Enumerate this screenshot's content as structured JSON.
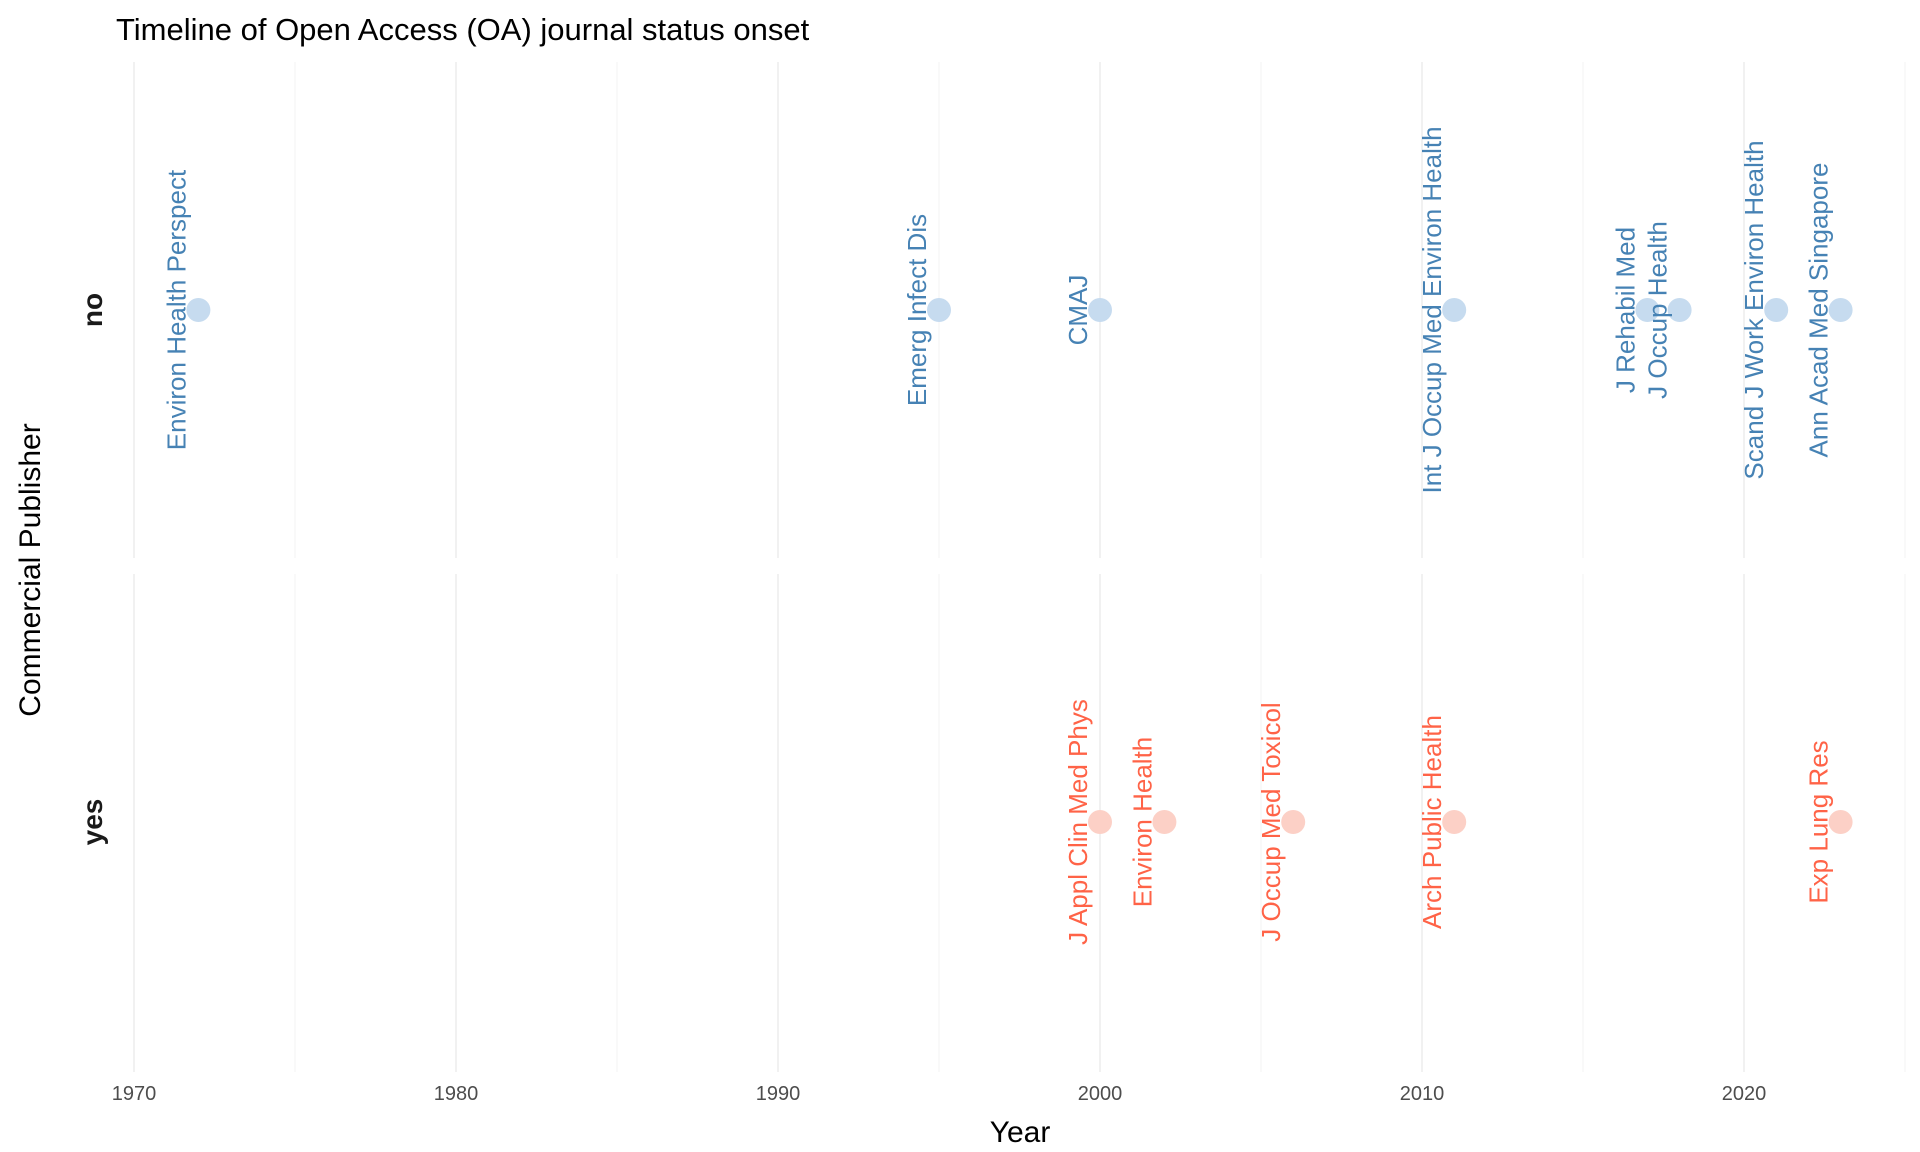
{
  "chart_data": {
    "type": "scatter",
    "title": "Timeline of Open Access (OA) journal status onset",
    "xlabel": "Year",
    "ylabel": "Commercial Publisher",
    "xlim": [
      1970,
      2025
    ],
    "x_ticks": [
      1970,
      1980,
      1990,
      2000,
      2010,
      2020
    ],
    "facets": [
      {
        "name": "no",
        "color": "#4682b4",
        "point_color": "#c6dbef",
        "points": [
          {
            "x": 1972,
            "label": "Environ Health Perspect"
          },
          {
            "x": 1995,
            "label": "Emerg Infect Dis"
          },
          {
            "x": 2000,
            "label": "CMAJ"
          },
          {
            "x": 2011,
            "label": "Int J Occup Med Environ Health"
          },
          {
            "x": 2017,
            "label": "J Rehabil Med"
          },
          {
            "x": 2018,
            "label": "J Occup Health"
          },
          {
            "x": 2021,
            "label": "Scand J Work Environ Health"
          },
          {
            "x": 2023,
            "label": "Ann Acad Med Singapore"
          }
        ]
      },
      {
        "name": "yes",
        "color": "#ff6347",
        "point_color": "#fcd0c6",
        "points": [
          {
            "x": 2000,
            "label": "J Appl Clin Med Phys"
          },
          {
            "x": 2002,
            "label": "Environ Health"
          },
          {
            "x": 2006,
            "label": "J Occup Med Toxicol"
          },
          {
            "x": 2011,
            "label": "Arch Public Health"
          },
          {
            "x": 2023,
            "label": "Exp Lung Res"
          }
        ]
      }
    ],
    "grid": true,
    "legend": "none"
  }
}
